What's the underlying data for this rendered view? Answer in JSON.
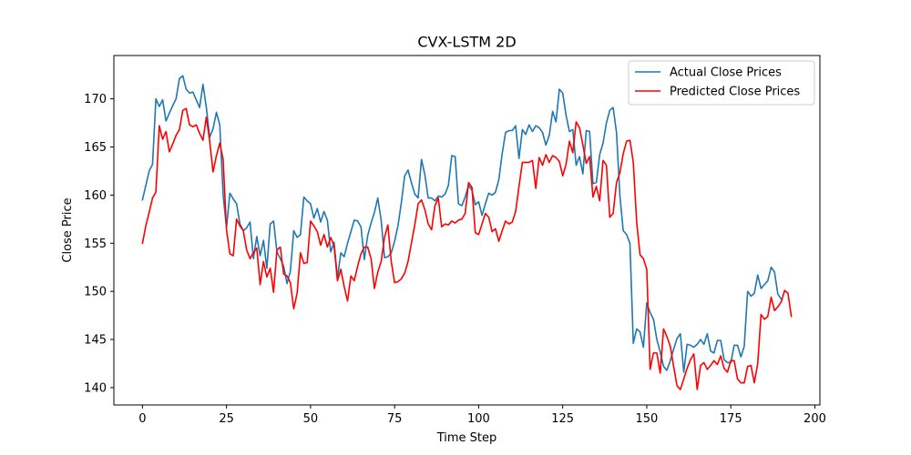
{
  "chart_data": {
    "type": "line",
    "title": "CVX-LSTM 2D",
    "xlabel": "Time Step",
    "ylabel": "Close Price",
    "xlim": [
      -8.5,
      201.5
    ],
    "ylim": [
      138.2,
      174.5
    ],
    "xticks": [
      0,
      25,
      50,
      75,
      100,
      125,
      150,
      175,
      200
    ],
    "yticks": [
      140,
      145,
      150,
      155,
      160,
      165,
      170
    ],
    "grid": false,
    "legend_position": "top-right",
    "series": [
      {
        "name": "Actual Close Prices",
        "color": "#1f77b4",
        "x_start": 0,
        "values": [
          159.5,
          161.0,
          162.5,
          163.2,
          170.0,
          169.2,
          169.9,
          167.7,
          168.5,
          169.3,
          170.0,
          172.1,
          172.4,
          171.0,
          170.6,
          170.7,
          169.9,
          169.1,
          171.5,
          169.1,
          166.0,
          166.9,
          168.6,
          167.3,
          160.0,
          156.6,
          160.2,
          159.6,
          159.1,
          157.0,
          156.3,
          156.6,
          157.2,
          153.4,
          155.7,
          153.7,
          155.3,
          152.4,
          157.0,
          157.3,
          154.1,
          153.4,
          152.6,
          150.8,
          152.1,
          156.3,
          155.6,
          155.9,
          159.8,
          159.4,
          159.1,
          157.6,
          158.6,
          157.2,
          158.3,
          157.4,
          154.1,
          155.1,
          151.4,
          154.0,
          153.6,
          155.0,
          156.2,
          157.4,
          157.3,
          156.7,
          153.3,
          155.8,
          157.1,
          158.2,
          159.7,
          157.4,
          153.5,
          153.6,
          154.0,
          155.2,
          156.8,
          159.2,
          162.0,
          162.6,
          161.3,
          160.1,
          159.7,
          163.7,
          162.1,
          159.7,
          159.7,
          159.4,
          159.9,
          159.8,
          160.1,
          161.0,
          164.1,
          164.0,
          159.1,
          158.9,
          159.8,
          161.0,
          160.5,
          159.0,
          159.3,
          157.9,
          159.1,
          160.2,
          160.0,
          160.3,
          161.6,
          164.3,
          166.5,
          166.7,
          166.7,
          167.2,
          163.8,
          166.8,
          166.3,
          167.3,
          166.6,
          167.2,
          167.0,
          166.5,
          165.2,
          166.2,
          168.7,
          167.6,
          171.0,
          170.6,
          168.3,
          166.6,
          166.8,
          163.1,
          164.0,
          162.2,
          166.7,
          166.6,
          161.2,
          161.3,
          164.2,
          165.4,
          167.5,
          168.8,
          169.1,
          166.5,
          160.0,
          156.3,
          155.9,
          155.0,
          144.6,
          146.1,
          145.8,
          144.2,
          148.8,
          147.8,
          147.1,
          145.0,
          143.7,
          142.2,
          141.8,
          142.8,
          144.0,
          145.1,
          145.6,
          141.6,
          144.5,
          144.4,
          144.2,
          144.5,
          145.0,
          144.5,
          145.6,
          143.8,
          143.6,
          144.9,
          144.9,
          142.9,
          142.6,
          142.6,
          144.4,
          144.4,
          143.2,
          144.3,
          150.0,
          149.5,
          149.8,
          151.7,
          150.3,
          150.7,
          151.1,
          152.5,
          152.0,
          149.7,
          149.2
        ]
      },
      {
        "name": "Predicted Close Prices",
        "color": "#ff0000",
        "x_start": 0,
        "values": [
          155.0,
          156.8,
          158.2,
          159.7,
          160.3,
          167.2,
          165.8,
          166.6,
          164.5,
          165.3,
          166.2,
          166.8,
          168.8,
          169.0,
          167.3,
          167.1,
          167.3,
          166.4,
          165.7,
          168.1,
          165.6,
          162.4,
          164.1,
          165.4,
          163.7,
          156.4,
          153.9,
          153.7,
          157.5,
          156.8,
          156.3,
          154.3,
          153.4,
          154.0,
          154.5,
          150.7,
          153.1,
          151.5,
          152.4,
          149.9,
          154.3,
          154.6,
          151.8,
          151.6,
          150.9,
          148.2,
          149.8,
          154.0,
          152.9,
          153.0,
          157.3,
          156.8,
          156.2,
          154.8,
          155.9,
          154.6,
          155.6,
          154.7,
          151.1,
          152.3,
          150.5,
          149.0,
          151.6,
          151.1,
          152.6,
          153.9,
          154.6,
          154.6,
          153.4,
          150.3,
          152.0,
          153.1,
          155.6,
          156.9,
          153.1,
          150.9,
          151.0,
          151.3,
          151.9,
          153.1,
          155.0,
          156.9,
          159.1,
          159.5,
          158.5,
          157.0,
          156.4,
          158.9,
          159.7,
          156.7,
          157.0,
          156.9,
          157.3,
          157.1,
          157.4,
          157.5,
          158.1,
          161.3,
          160.8,
          156.1,
          155.9,
          157.0,
          158.1,
          157.7,
          156.2,
          156.5,
          155.2,
          156.3,
          157.3,
          157.0,
          157.2,
          158.3,
          160.9,
          163.4,
          163.4,
          163.4,
          163.6,
          160.7,
          163.9,
          163.1,
          164.2,
          163.4,
          164.1,
          163.9,
          163.5,
          162.0,
          163.2,
          165.6,
          164.4,
          167.6,
          167.0,
          165.2,
          163.3,
          164.0,
          159.8,
          160.9,
          159.4,
          163.6,
          163.1,
          157.7,
          158.1,
          161.3,
          162.3,
          164.3,
          165.6,
          165.7,
          163.4,
          157.2,
          153.8,
          153.4,
          152.3,
          141.9,
          143.6,
          143.6,
          141.5,
          146.1,
          145.3,
          144.3,
          142.2,
          140.2,
          139.8,
          140.9,
          142.0,
          142.9,
          143.5,
          139.8,
          142.3,
          142.6,
          141.9,
          142.3,
          142.8,
          142.4,
          143.3,
          142.0,
          141.6,
          142.8,
          142.8,
          140.9,
          140.5,
          140.5,
          142.2,
          142.3,
          140.5,
          142.5,
          147.6,
          147.1,
          147.4,
          149.4,
          148.0,
          148.4,
          148.9,
          150.1,
          149.8,
          147.4
        ]
      }
    ]
  }
}
